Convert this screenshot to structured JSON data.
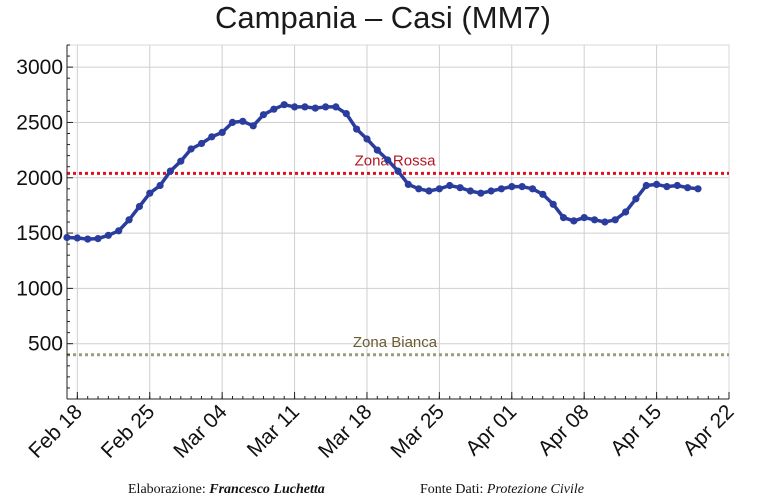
{
  "chart_data": {
    "type": "line",
    "title": "Campania – Casi (MM7)",
    "xlabel": "",
    "ylabel": "",
    "xlim": [
      "2021-02-17",
      "2021-04-22"
    ],
    "ylim": [
      0,
      3200
    ],
    "grid": true,
    "y_ticks": [
      500,
      1000,
      1500,
      2000,
      2500,
      3000
    ],
    "x_ticks": [
      "2021-02-18",
      "2021-02-25",
      "2021-03-04",
      "2021-03-11",
      "2021-03-18",
      "2021-03-25",
      "2021-04-01",
      "2021-04-08",
      "2021-04-15",
      "2021-04-22"
    ],
    "x_tick_labels": [
      "Feb 18",
      "Feb 25",
      "Mar 04",
      "Mar 11",
      "Mar 18",
      "Mar 25",
      "Apr 01",
      "Apr 08",
      "Apr 15",
      "Apr 22"
    ],
    "series": [
      {
        "color": "#2a3d9e",
        "x": [
          "2021-02-17",
          "2021-02-18",
          "2021-02-19",
          "2021-02-20",
          "2021-02-21",
          "2021-02-22",
          "2021-02-23",
          "2021-02-24",
          "2021-02-25",
          "2021-02-26",
          "2021-02-27",
          "2021-02-28",
          "2021-03-01",
          "2021-03-02",
          "2021-03-03",
          "2021-03-04",
          "2021-03-05",
          "2021-03-06",
          "2021-03-07",
          "2021-03-08",
          "2021-03-09",
          "2021-03-10",
          "2021-03-11",
          "2021-03-12",
          "2021-03-13",
          "2021-03-14",
          "2021-03-15",
          "2021-03-16",
          "2021-03-17",
          "2021-03-18",
          "2021-03-19",
          "2021-03-20",
          "2021-03-21",
          "2021-03-22",
          "2021-03-23",
          "2021-03-24",
          "2021-03-25",
          "2021-03-26",
          "2021-03-27",
          "2021-03-28",
          "2021-03-29",
          "2021-03-30",
          "2021-03-31",
          "2021-04-01",
          "2021-04-02",
          "2021-04-03",
          "2021-04-04",
          "2021-04-05",
          "2021-04-06",
          "2021-04-07",
          "2021-04-08",
          "2021-04-09",
          "2021-04-10",
          "2021-04-11",
          "2021-04-12",
          "2021-04-13",
          "2021-04-14",
          "2021-04-15",
          "2021-04-16",
          "2021-04-17",
          "2021-04-18",
          "2021-04-19"
        ],
        "values": [
          1460,
          1455,
          1445,
          1450,
          1480,
          1520,
          1620,
          1740,
          1860,
          1930,
          2060,
          2150,
          2260,
          2310,
          2370,
          2410,
          2500,
          2510,
          2470,
          2570,
          2620,
          2660,
          2640,
          2640,
          2630,
          2640,
          2640,
          2580,
          2440,
          2350,
          2250,
          2160,
          2060,
          1940,
          1900,
          1880,
          1900,
          1930,
          1910,
          1880,
          1860,
          1880,
          1900,
          1920,
          1920,
          1900,
          1850,
          1760,
          1640,
          1610,
          1640,
          1620,
          1600,
          1620,
          1690,
          1810,
          1930,
          1940,
          1920,
          1930,
          1910,
          1900
        ]
      }
    ],
    "reference_lines": [
      {
        "y": 2040,
        "label": "Zona Rossa",
        "line_color": "#e0111f",
        "text_color": "#b01722"
      },
      {
        "y": 400,
        "label": "Zona Bianca",
        "line_color": "#9c9c7a",
        "text_color": "#6b5b2e"
      }
    ]
  },
  "footer": {
    "elaborazione_label": "Elaborazione:",
    "elaborazione_author": "Francesco Luchetta",
    "fonte_label": "Fonte Dati:",
    "fonte_value": "Protezione Civile"
  }
}
